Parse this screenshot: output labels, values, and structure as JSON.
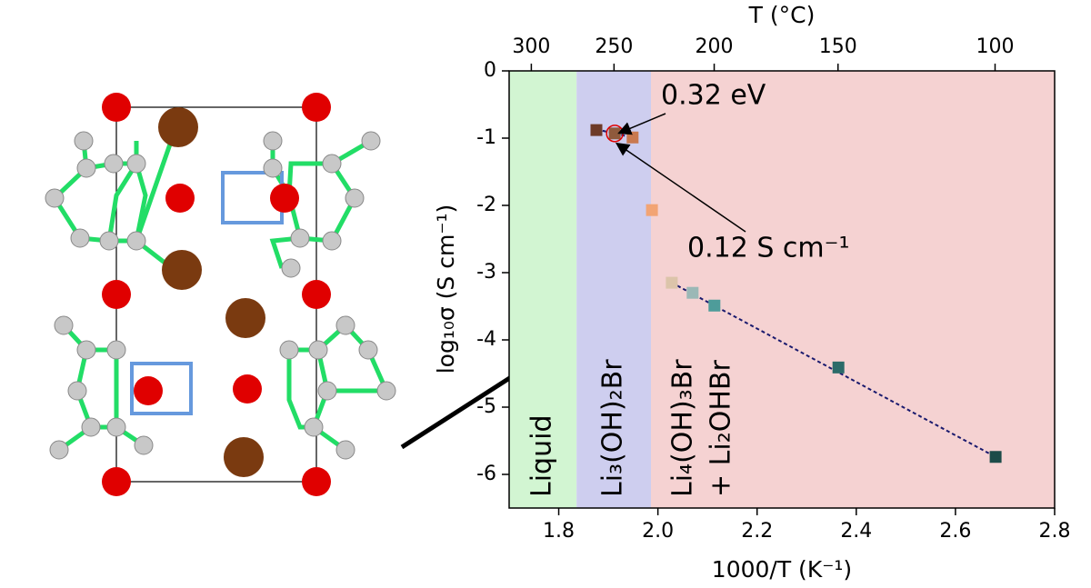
{
  "chart_data": {
    "type": "scatter",
    "xlabel": "1000/T (K⁻¹)",
    "ylabel": "log₁₀σ (S cm⁻¹)",
    "x2label": "T (°C)",
    "xlim": [
      1.7,
      2.8
    ],
    "ylim": [
      -6.5,
      0
    ],
    "xticks": [
      1.8,
      {
        "value": 2,
        "label": "2.0"
      },
      2.2,
      2.4,
      2.6,
      2.8
    ],
    "yticks": [
      0,
      -1,
      -2,
      -3,
      -4,
      -5,
      -6
    ],
    "x2ticks": [
      300,
      250,
      200,
      150,
      100
    ],
    "regions": [
      {
        "lines": [
          "Liquid"
        ],
        "from": 1.7,
        "to": 1.836,
        "color": "#d2f5d2"
      },
      {
        "lines": [
          "Li₃(OH)₂Br"
        ],
        "from": 1.836,
        "to": 1.986,
        "color": "#ceceef"
      },
      {
        "lines": [
          "Li₄(OH)₃Br",
          "+ Li₂OHBr"
        ],
        "from": 1.986,
        "to": 2.8,
        "color": "#f5d2d2"
      }
    ],
    "x": [
      1.876,
      1.913,
      1.949,
      1.988,
      2.028,
      2.07,
      2.114,
      2.364,
      2.681
    ],
    "values": [
      -0.88,
      -0.93,
      -0.99,
      -2.07,
      -3.15,
      -3.3,
      -3.49,
      -4.41,
      -5.74
    ],
    "colors": [
      "#6e3b28",
      "#8f5a3c",
      "#c9794f",
      "#f2a474",
      "#dcc4aa",
      "#9bb8b6",
      "#4e9c9a",
      "#2b6b69",
      "#1c4c49"
    ],
    "fits": [
      {
        "x": [
          1.876,
          1.949
        ],
        "values": [
          -0.87,
          -0.99
        ]
      },
      {
        "x": [
          2.028,
          2.681
        ],
        "values": [
          -3.15,
          -5.74
        ]
      }
    ],
    "annotations": [
      {
        "text": "0.32 eV",
        "x": 1.91,
        "y": -0.9
      },
      {
        "text": "0.12 S cm⁻¹",
        "x": 1.913,
        "y": -1.05
      }
    ]
  }
}
